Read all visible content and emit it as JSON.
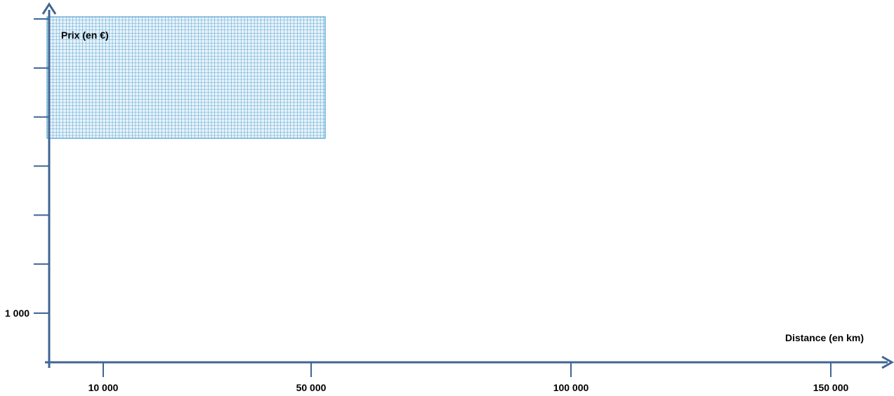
{
  "colors": {
    "axis": "#3f6594",
    "grid_fill": "#e8f3fb",
    "grid_line": "#2a8bc2",
    "text": "#000000"
  },
  "chart_data": {
    "type": "line",
    "title": "",
    "xlabel": "Distance (en km)",
    "ylabel": "Prix (en €)",
    "x_ticks": [
      {
        "value": 10000,
        "label": "10 000"
      },
      {
        "value": 50000,
        "label": "50 000"
      },
      {
        "value": 100000,
        "label": "100 000"
      },
      {
        "value": 150000,
        "label": "150 000"
      }
    ],
    "y_tick_label": "1 000",
    "y_tick_count": 7,
    "series": [],
    "grid": "graph-paper patch in upper-left",
    "legend": "none"
  }
}
